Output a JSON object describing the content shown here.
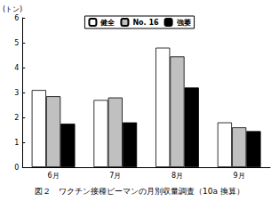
{
  "chart_data": {
    "type": "bar",
    "title": "図２　ワクチン接種ピーマンの月別収量調査（10a 換算）",
    "y_label": "(トン)",
    "categories": [
      "6月",
      "7月",
      "8月",
      "9月"
    ],
    "series": [
      {
        "name": "健全",
        "color": "#ffffff",
        "values": [
          3.1,
          2.7,
          4.8,
          1.8
        ]
      },
      {
        "name": "No. 16",
        "color": "#c0c0c0",
        "values": [
          2.85,
          2.8,
          4.45,
          1.6
        ]
      },
      {
        "name": "強萎",
        "color": "#000000",
        "values": [
          1.75,
          1.8,
          3.2,
          1.45
        ]
      }
    ],
    "ylim": [
      0,
      6
    ],
    "yticks": [
      0,
      1,
      2,
      3,
      4,
      5,
      6
    ],
    "grid": false,
    "legend": "top"
  }
}
